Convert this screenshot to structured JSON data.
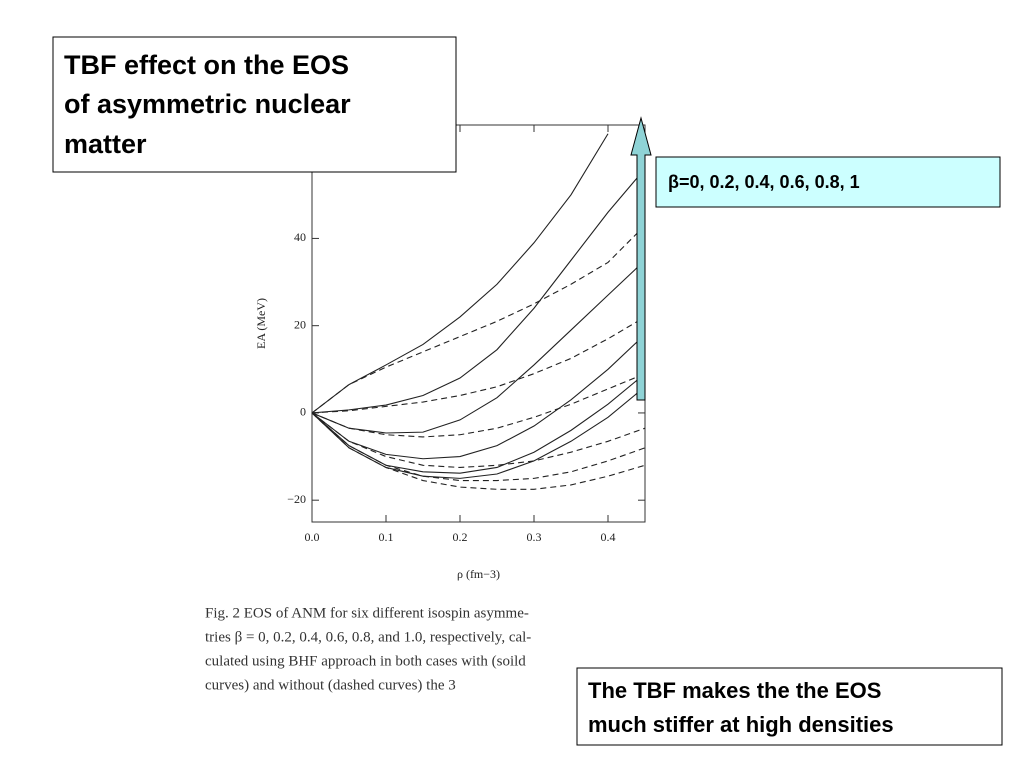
{
  "slide": {
    "title_lines": [
      "TBF effect on the EOS",
      "of asymmetric nuclear",
      "matter"
    ],
    "beta_note": "β=0, 0.2, 0.4, 0.6, 0.8, 1",
    "conclusion_lines": [
      "The TBF makes the the EOS",
      "much stiffer at high densities"
    ],
    "caption_lines": [
      "Fig. 2   EOS of ANM for six different isospin asymme-",
      "tries β = 0, 0.2, 0.4, 0.6, 0.8, and 1.0, respectively, cal-",
      "culated using BHF approach in both cases with (soild",
      "curves) and without (dashed curves) the 3"
    ]
  },
  "chart_data": {
    "type": "line",
    "xlabel": "ρ (fm−3)",
    "ylabel": "EA (MeV)",
    "xlim": [
      0,
      0.45
    ],
    "ylim": [
      -25,
      66
    ],
    "xticks": [
      {
        "value": 0,
        "label": "0.0"
      },
      0.1,
      0.2,
      0.3,
      0.4
    ],
    "yticks": [
      {
        "value": -20,
        "label": "−20"
      },
      0,
      20,
      40
    ],
    "x": [
      0,
      0.05,
      0.1,
      0.15,
      0.2,
      0.25,
      0.3,
      0.35,
      0.4,
      0.45
    ],
    "series": [
      {
        "color": "#222",
        "style": "solid",
        "values": [
          0,
          6.5,
          11,
          15.7,
          22,
          29.5,
          39,
          50,
          64,
          null
        ]
      },
      {
        "color": "#222",
        "style": "solid",
        "values": [
          0,
          0.7,
          1.8,
          4,
          8,
          14.5,
          24,
          35,
          46,
          56
        ]
      },
      {
        "color": "#222",
        "style": "solid",
        "values": [
          0,
          -3.5,
          -4.6,
          -4.4,
          -1.6,
          3.5,
          11,
          19,
          27,
          35
        ]
      },
      {
        "color": "#222",
        "style": "solid",
        "values": [
          0,
          -6.5,
          -9.5,
          -10.5,
          -10,
          -7.5,
          -3,
          3,
          10,
          18
        ]
      },
      {
        "color": "#222",
        "style": "solid",
        "values": [
          0,
          -7.5,
          -12,
          -13.5,
          -13.8,
          -12.5,
          -9,
          -4,
          2,
          9
        ]
      },
      {
        "color": "#222",
        "style": "solid",
        "values": [
          0,
          -8,
          -12.5,
          -14.5,
          -15,
          -14,
          -11,
          -6.5,
          -1,
          6
        ]
      },
      {
        "color": "#222",
        "style": "dashed",
        "values": [
          0,
          6.5,
          10.5,
          14,
          17.5,
          21,
          25,
          29.5,
          34.5,
          43
        ]
      },
      {
        "color": "#222",
        "style": "dashed",
        "values": [
          0,
          0.5,
          1.5,
          2.5,
          4,
          6,
          9,
          12.5,
          17,
          22
        ]
      },
      {
        "color": "#222",
        "style": "dashed",
        "values": [
          0,
          -3.5,
          -5,
          -5.5,
          -5,
          -3.5,
          -1,
          2,
          5.5,
          9
        ]
      },
      {
        "color": "#222",
        "style": "dashed",
        "values": [
          0,
          -6.5,
          -10,
          -12,
          -12.5,
          -12,
          -11,
          -9,
          -6.5,
          -3.5
        ]
      },
      {
        "color": "#222",
        "style": "dashed",
        "values": [
          0,
          -7.5,
          -12,
          -14.5,
          -15.5,
          -15.5,
          -15,
          -13.5,
          -11,
          -8
        ]
      },
      {
        "color": "#222",
        "style": "dashed",
        "values": [
          0,
          -8,
          -12.5,
          -15.5,
          -17,
          -17.5,
          -17.5,
          -16.5,
          -14.5,
          -12
        ]
      }
    ]
  }
}
